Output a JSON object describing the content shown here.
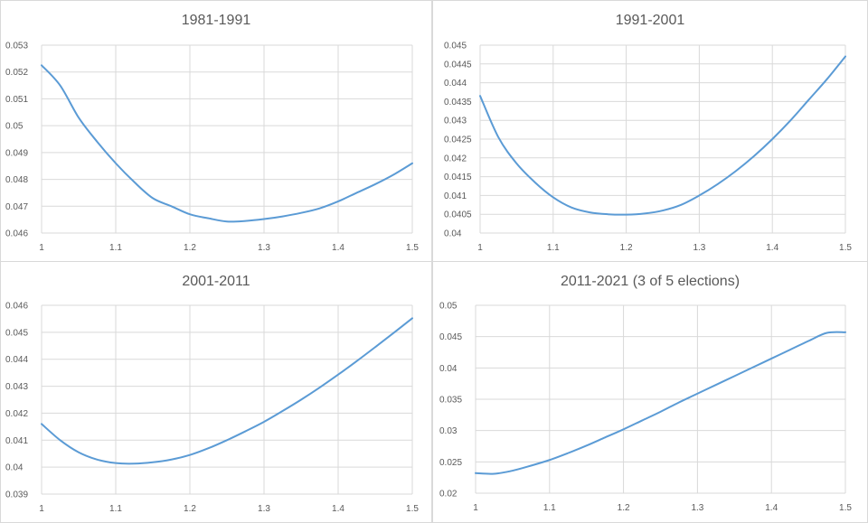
{
  "chart_data": [
    {
      "type": "line",
      "title": "1981-1991",
      "xlabel": "",
      "ylabel": "",
      "xlim": [
        1,
        1.5
      ],
      "ylim": [
        0.046,
        0.053
      ],
      "x_ticks": [
        "1",
        "1.1",
        "1.2",
        "1.3",
        "1.4",
        "1.5"
      ],
      "y_ticks": [
        "0.046",
        "0.047",
        "0.048",
        "0.049",
        "0.05",
        "0.051",
        "0.052",
        "0.053"
      ],
      "grid": true,
      "legend": "none",
      "series": [
        {
          "color": "#5b9bd5",
          "x": [
            1.0,
            1.025,
            1.05,
            1.075,
            1.1,
            1.125,
            1.15,
            1.175,
            1.2,
            1.225,
            1.25,
            1.275,
            1.3,
            1.325,
            1.35,
            1.375,
            1.4,
            1.425,
            1.45,
            1.475,
            1.5
          ],
          "y": [
            0.05225,
            0.0515,
            0.0503,
            0.0494,
            0.0486,
            0.0479,
            0.0473,
            0.047,
            0.0467,
            0.04655,
            0.04643,
            0.04645,
            0.04652,
            0.04662,
            0.04675,
            0.04692,
            0.04718,
            0.0475,
            0.04782,
            0.04818,
            0.0486
          ]
        }
      ]
    },
    {
      "type": "line",
      "title": "1991-2001",
      "xlabel": "",
      "ylabel": "",
      "xlim": [
        1,
        1.5
      ],
      "ylim": [
        0.04,
        0.045
      ],
      "x_ticks": [
        "1",
        "1.1",
        "1.2",
        "1.3",
        "1.4",
        "1.5"
      ],
      "y_ticks": [
        "0.04",
        "0.0405",
        "0.041",
        "0.0415",
        "0.042",
        "0.0425",
        "0.043",
        "0.0435",
        "0.044",
        "0.0445",
        "0.045"
      ],
      "grid": true,
      "legend": "none",
      "series": [
        {
          "color": "#5b9bd5",
          "x": [
            1.0,
            1.025,
            1.05,
            1.075,
            1.1,
            1.125,
            1.15,
            1.175,
            1.2,
            1.225,
            1.25,
            1.275,
            1.3,
            1.325,
            1.35,
            1.375,
            1.4,
            1.425,
            1.45,
            1.475,
            1.5
          ],
          "y": [
            0.04365,
            0.04255,
            0.04185,
            0.04135,
            0.04095,
            0.04068,
            0.04055,
            0.0405,
            0.04049,
            0.04052,
            0.0406,
            0.04075,
            0.041,
            0.0413,
            0.04165,
            0.04205,
            0.0425,
            0.043,
            0.04355,
            0.0441,
            0.0447
          ]
        }
      ]
    },
    {
      "type": "line",
      "title": "2001-2011",
      "xlabel": "",
      "ylabel": "",
      "xlim": [
        1,
        1.5
      ],
      "ylim": [
        0.039,
        0.046
      ],
      "x_ticks": [
        "1",
        "1.1",
        "1.2",
        "1.3",
        "1.4",
        "1.5"
      ],
      "y_ticks": [
        "0.039",
        "0.04",
        "0.041",
        "0.042",
        "0.043",
        "0.044",
        "0.045",
        "0.046"
      ],
      "grid": true,
      "legend": "none",
      "series": [
        {
          "color": "#5b9bd5",
          "x": [
            1.0,
            1.025,
            1.05,
            1.075,
            1.1,
            1.125,
            1.15,
            1.175,
            1.2,
            1.225,
            1.25,
            1.275,
            1.3,
            1.325,
            1.35,
            1.375,
            1.4,
            1.425,
            1.45,
            1.475,
            1.5
          ],
          "y": [
            0.0416,
            0.041,
            0.04055,
            0.04028,
            0.04015,
            0.04013,
            0.04018,
            0.04028,
            0.04045,
            0.0407,
            0.041,
            0.04133,
            0.04168,
            0.04208,
            0.0425,
            0.04295,
            0.04343,
            0.04393,
            0.04445,
            0.04498,
            0.04552
          ]
        }
      ]
    },
    {
      "type": "line",
      "title": "2011-2021 (3 of 5 elections)",
      "xlabel": "",
      "ylabel": "",
      "xlim": [
        1,
        1.5
      ],
      "ylim": [
        0.02,
        0.05
      ],
      "x_ticks": [
        "1",
        "1.1",
        "1.2",
        "1.3",
        "1.4",
        "1.5"
      ],
      "y_ticks": [
        "0.02",
        "0.025",
        "0.03",
        "0.035",
        "0.04",
        "0.045",
        "0.05"
      ],
      "grid": true,
      "legend": "none",
      "series": [
        {
          "color": "#5b9bd5",
          "x": [
            1.0,
            1.025,
            1.05,
            1.075,
            1.1,
            1.125,
            1.15,
            1.175,
            1.2,
            1.225,
            1.25,
            1.275,
            1.3,
            1.325,
            1.35,
            1.375,
            1.4,
            1.425,
            1.45,
            1.475,
            1.5
          ],
          "y": [
            0.0232,
            0.0231,
            0.0236,
            0.0244,
            0.0253,
            0.0264,
            0.0276,
            0.0289,
            0.0302,
            0.0316,
            0.033,
            0.0345,
            0.0359,
            0.0373,
            0.0387,
            0.0401,
            0.0415,
            0.0429,
            0.0443,
            0.0456,
            0.0457
          ]
        }
      ]
    }
  ]
}
